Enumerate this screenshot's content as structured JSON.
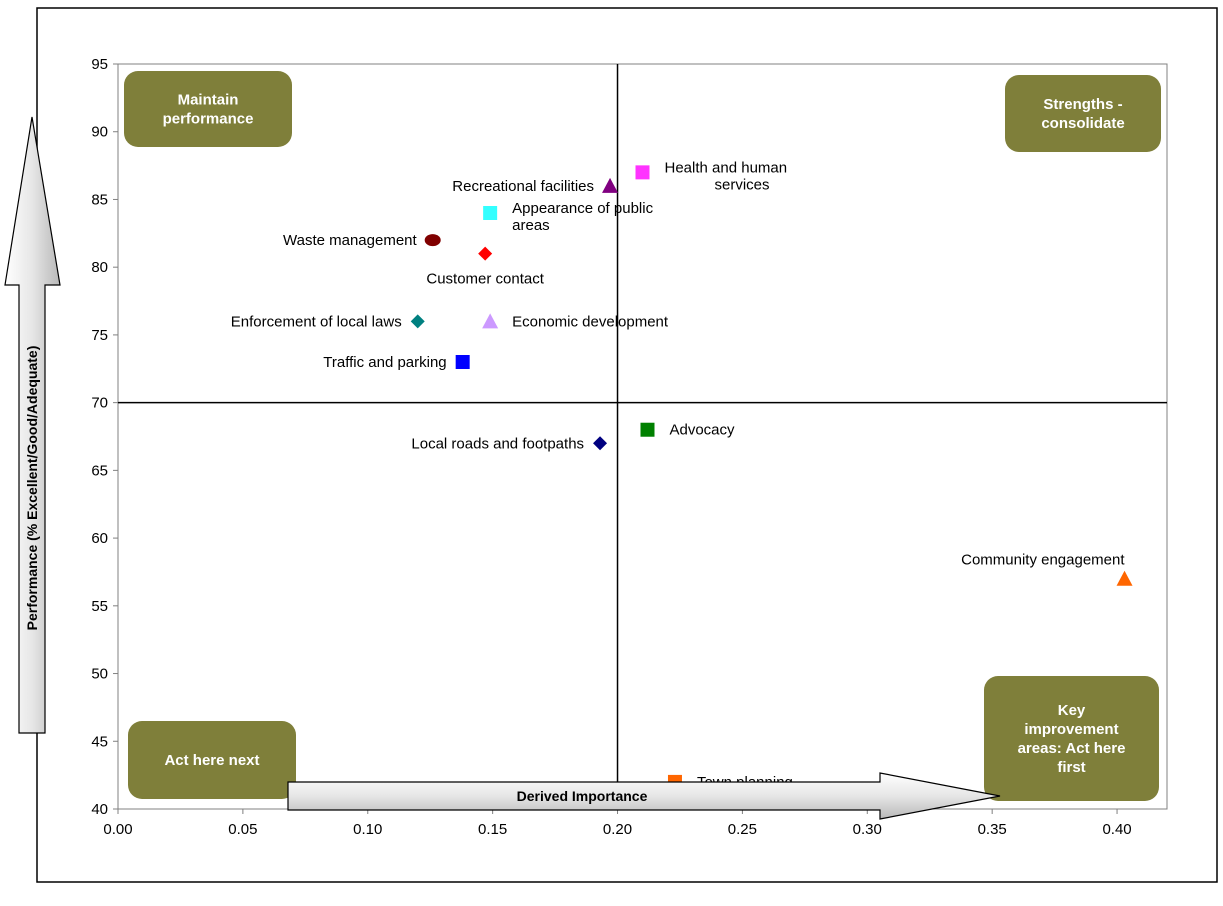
{
  "chart_data": {
    "type": "scatter",
    "xlabel": "Derived Importance",
    "ylabel": "Performance (% Excellent/Good/Adequate)",
    "xlim": [
      0,
      0.42
    ],
    "ylim": [
      40,
      95
    ],
    "x_ticks": [
      "0.00",
      "0.05",
      "0.10",
      "0.15",
      "0.20",
      "0.25",
      "0.30",
      "0.35",
      "0.40"
    ],
    "x_tick_values": [
      0,
      0.05,
      0.1,
      0.15,
      0.2,
      0.25,
      0.3,
      0.35,
      0.4
    ],
    "y_ticks": [
      "40",
      "45",
      "50",
      "55",
      "60",
      "65",
      "70",
      "75",
      "80",
      "85",
      "90",
      "95"
    ],
    "y_tick_values": [
      40,
      45,
      50,
      55,
      60,
      65,
      70,
      75,
      80,
      85,
      90,
      95
    ],
    "grid": false,
    "divider_x": 0.2,
    "divider_y": 70,
    "quadrant_labels": [
      {
        "lines": [
          "Maintain",
          "performance"
        ],
        "position": "top-left"
      },
      {
        "lines": [
          "Strengths -",
          "consolidate"
        ],
        "position": "top-right"
      },
      {
        "lines": [
          "Act here next"
        ],
        "position": "bottom-left"
      },
      {
        "lines": [
          "Key",
          "improvement",
          "areas:  Act here",
          "first"
        ],
        "position": "bottom-right"
      }
    ],
    "quadrant_color": "#7f7f3a",
    "points": [
      {
        "label": [
          "Health and human",
          "services"
        ],
        "x": 0.21,
        "y": 87,
        "marker": "square",
        "color": "#ff33ff",
        "label_side": "right"
      },
      {
        "label": [
          "Recreational facilities"
        ],
        "x": 0.197,
        "y": 86,
        "marker": "triangle",
        "color": "#800080",
        "label_side": "left"
      },
      {
        "label": [
          "Appearance of public",
          "areas"
        ],
        "x": 0.149,
        "y": 84,
        "marker": "square",
        "color": "#33ffff",
        "label_side": "right"
      },
      {
        "label": [
          "Waste management"
        ],
        "x": 0.126,
        "y": 82,
        "marker": "circle",
        "color": "#800000",
        "label_side": "left"
      },
      {
        "label": [
          "Customer contact"
        ],
        "x": 0.147,
        "y": 81,
        "marker": "diamond",
        "color": "#ff0000",
        "label_side": "below"
      },
      {
        "label": [
          "Enforcement of local laws"
        ],
        "x": 0.12,
        "y": 76,
        "marker": "diamond",
        "color": "#008080",
        "label_side": "left"
      },
      {
        "label": [
          "Economic development"
        ],
        "x": 0.149,
        "y": 76,
        "marker": "triangle",
        "color": "#cc99ff",
        "label_side": "right"
      },
      {
        "label": [
          "Traffic and parking"
        ],
        "x": 0.138,
        "y": 73,
        "marker": "square",
        "color": "#0000ff",
        "label_side": "left"
      },
      {
        "label": [
          "Local roads and footpaths"
        ],
        "x": 0.193,
        "y": 67,
        "marker": "diamond",
        "color": "#000080",
        "label_side": "left"
      },
      {
        "label": [
          "Advocacy"
        ],
        "x": 0.212,
        "y": 68,
        "marker": "square",
        "color": "#008000",
        "label_side": "right"
      },
      {
        "label": [
          "Community engagement"
        ],
        "x": 0.403,
        "y": 57,
        "marker": "triangle",
        "color": "#ff6600",
        "label_side": "above"
      },
      {
        "label": [
          "Town planning"
        ],
        "x": 0.223,
        "y": 42,
        "marker": "square",
        "color": "#ff6600",
        "label_side": "right"
      }
    ]
  }
}
